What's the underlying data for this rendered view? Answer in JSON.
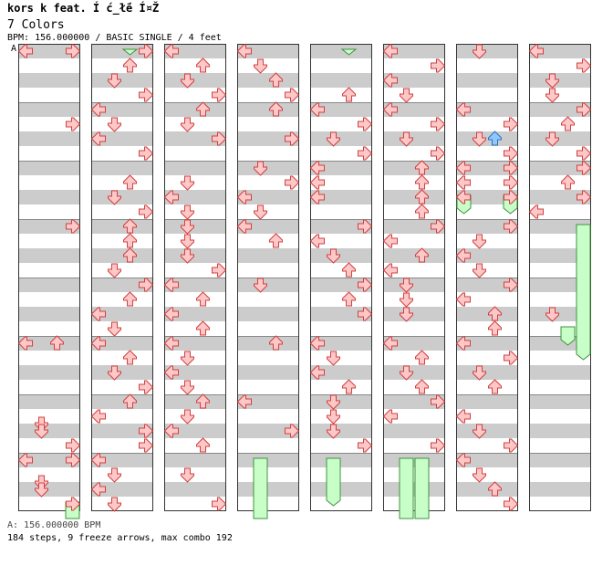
{
  "header": {
    "title": "kors k feat. Í  ć_ł̃é  Í¤Ž",
    "song": "7 Colors",
    "info": "BPM: 156.000000 / BASIC SINGLE / 4 feet"
  },
  "marker": "A",
  "footer": {
    "bpm": "A: 156.000000 BPM",
    "stats": "184 steps, 9 freeze arrows, max combo 192"
  },
  "colors": {
    "arrow_fill": "#ffc8c8",
    "arrow_stroke": "#d04040",
    "blue_fill": "#8ec8ff",
    "blue_stroke": "#3070c0",
    "freeze_fill": "#c8ffc8",
    "freeze_stroke": "#409040",
    "stripe": "#cccccc",
    "border": "#333333"
  },
  "chart_data": {
    "type": "step-chart",
    "lanes": [
      "left",
      "down",
      "up",
      "right"
    ],
    "columns": 8,
    "measures_per_column": 8,
    "notes": [
      [
        [
          0,
          0,
          0
        ],
        [
          0,
          0,
          3
        ],
        [
          1,
          4,
          3
        ],
        [
          3,
          0,
          3
        ],
        [
          5,
          0,
          0
        ],
        [
          5,
          0,
          2
        ],
        [
          6,
          6,
          1
        ],
        [
          7,
          6,
          1
        ],
        [
          6,
          8,
          1
        ],
        [
          6,
          12,
          3
        ],
        [
          7,
          0,
          0
        ],
        [
          7,
          0,
          3
        ],
        [
          7,
          8,
          1
        ],
        [
          7,
          12,
          3
        ]
      ],
      [
        [
          0,
          0,
          3
        ],
        [
          0,
          4,
          2
        ],
        [
          0,
          8,
          1
        ],
        [
          0,
          12,
          3
        ],
        [
          1,
          0,
          0
        ],
        [
          1,
          4,
          1
        ],
        [
          1,
          8,
          0
        ],
        [
          1,
          12,
          3
        ],
        [
          2,
          4,
          2
        ],
        [
          2,
          8,
          1
        ],
        [
          2,
          12,
          3
        ],
        [
          3,
          0,
          2
        ],
        [
          3,
          4,
          2
        ],
        [
          3,
          8,
          2
        ],
        [
          3,
          12,
          1
        ],
        [
          4,
          0,
          3
        ],
        [
          4,
          4,
          2
        ],
        [
          4,
          8,
          0
        ],
        [
          4,
          12,
          1
        ],
        [
          5,
          0,
          0
        ],
        [
          5,
          4,
          2
        ],
        [
          5,
          8,
          1
        ],
        [
          5,
          12,
          3
        ],
        [
          6,
          0,
          2
        ],
        [
          6,
          4,
          0
        ],
        [
          6,
          8,
          3
        ],
        [
          6,
          12,
          3
        ],
        [
          7,
          0,
          0
        ],
        [
          7,
          4,
          1
        ],
        [
          7,
          8,
          0
        ],
        [
          7,
          12,
          1
        ]
      ],
      [
        [
          0,
          0,
          0
        ],
        [
          0,
          4,
          2
        ],
        [
          0,
          8,
          1
        ],
        [
          0,
          12,
          3
        ],
        [
          1,
          0,
          2
        ],
        [
          1,
          4,
          1
        ],
        [
          1,
          8,
          3
        ],
        [
          2,
          4,
          1
        ],
        [
          2,
          8,
          0
        ],
        [
          2,
          12,
          1
        ],
        [
          3,
          0,
          1
        ],
        [
          3,
          4,
          1
        ],
        [
          3,
          8,
          1
        ],
        [
          3,
          12,
          3
        ],
        [
          4,
          0,
          0
        ],
        [
          4,
          4,
          2
        ],
        [
          4,
          8,
          0
        ],
        [
          4,
          12,
          2
        ],
        [
          5,
          0,
          0
        ],
        [
          5,
          4,
          1
        ],
        [
          5,
          8,
          0
        ],
        [
          5,
          12,
          1
        ],
        [
          6,
          0,
          2
        ],
        [
          6,
          4,
          1
        ],
        [
          6,
          8,
          0
        ],
        [
          6,
          12,
          2
        ],
        [
          7,
          4,
          1
        ],
        [
          7,
          12,
          3
        ]
      ],
      [
        [
          0,
          0,
          0
        ],
        [
          0,
          4,
          1
        ],
        [
          0,
          8,
          2
        ],
        [
          0,
          12,
          3
        ],
        [
          1,
          0,
          2
        ],
        [
          1,
          8,
          3
        ],
        [
          2,
          0,
          1
        ],
        [
          2,
          4,
          3
        ],
        [
          2,
          8,
          0
        ],
        [
          2,
          12,
          1
        ],
        [
          3,
          0,
          0
        ],
        [
          3,
          4,
          2
        ],
        [
          4,
          0,
          1
        ],
        [
          5,
          0,
          2
        ],
        [
          6,
          0,
          0
        ],
        [
          6,
          8,
          3
        ]
      ],
      [
        [
          0,
          12,
          2
        ],
        [
          1,
          0,
          0
        ],
        [
          1,
          4,
          3
        ],
        [
          1,
          8,
          1
        ],
        [
          1,
          12,
          3
        ],
        [
          2,
          0,
          0
        ],
        [
          2,
          4,
          0
        ],
        [
          2,
          8,
          0
        ],
        [
          3,
          0,
          3
        ],
        [
          3,
          4,
          0
        ],
        [
          3,
          8,
          1
        ],
        [
          3,
          12,
          2
        ],
        [
          4,
          0,
          3
        ],
        [
          4,
          4,
          2
        ],
        [
          4,
          8,
          3
        ],
        [
          5,
          0,
          0
        ],
        [
          5,
          4,
          1
        ],
        [
          5,
          8,
          0
        ],
        [
          5,
          12,
          2
        ],
        [
          6,
          0,
          1
        ],
        [
          6,
          4,
          1
        ],
        [
          6,
          8,
          1
        ],
        [
          6,
          12,
          3
        ]
      ],
      [
        [
          0,
          0,
          0
        ],
        [
          0,
          4,
          3
        ],
        [
          0,
          8,
          0
        ],
        [
          0,
          12,
          1
        ],
        [
          1,
          0,
          0
        ],
        [
          1,
          4,
          3
        ],
        [
          1,
          8,
          1
        ],
        [
          1,
          12,
          3
        ],
        [
          2,
          0,
          2
        ],
        [
          2,
          4,
          2
        ],
        [
          2,
          8,
          2
        ],
        [
          2,
          12,
          2
        ],
        [
          3,
          0,
          3
        ],
        [
          3,
          4,
          0
        ],
        [
          3,
          8,
          2
        ],
        [
          3,
          12,
          0
        ],
        [
          4,
          0,
          1
        ],
        [
          4,
          4,
          1
        ],
        [
          4,
          8,
          1
        ],
        [
          5,
          0,
          0
        ],
        [
          5,
          4,
          2
        ],
        [
          5,
          8,
          1
        ],
        [
          5,
          12,
          2
        ],
        [
          6,
          0,
          3
        ],
        [
          6,
          4,
          0
        ],
        [
          6,
          12,
          3
        ]
      ],
      [
        [
          0,
          0,
          1
        ],
        [
          1,
          0,
          0
        ],
        [
          1,
          4,
          3
        ],
        [
          1,
          8,
          1
        ],
        [
          1,
          12,
          3
        ],
        [
          2,
          0,
          0
        ],
        [
          2,
          0,
          3
        ],
        [
          2,
          4,
          0
        ],
        [
          2,
          4,
          3
        ],
        [
          2,
          8,
          0
        ],
        [
          2,
          8,
          3
        ],
        [
          3,
          0,
          3
        ],
        [
          3,
          4,
          1
        ],
        [
          3,
          8,
          0
        ],
        [
          3,
          12,
          1
        ],
        [
          4,
          0,
          3
        ],
        [
          4,
          4,
          0
        ],
        [
          4,
          8,
          2
        ],
        [
          4,
          12,
          2
        ],
        [
          5,
          0,
          0
        ],
        [
          5,
          4,
          3
        ],
        [
          5,
          8,
          1
        ],
        [
          5,
          12,
          2
        ],
        [
          6,
          4,
          0
        ],
        [
          6,
          8,
          1
        ],
        [
          6,
          12,
          3
        ],
        [
          7,
          0,
          0
        ],
        [
          7,
          4,
          1
        ],
        [
          7,
          8,
          2
        ],
        [
          7,
          12,
          3
        ]
      ],
      [
        [
          0,
          0,
          0
        ],
        [
          0,
          4,
          3
        ],
        [
          0,
          8,
          1
        ],
        [
          0,
          12,
          1
        ],
        [
          1,
          0,
          3
        ],
        [
          1,
          4,
          2
        ],
        [
          1,
          8,
          1
        ],
        [
          1,
          12,
          3
        ],
        [
          2,
          0,
          3
        ],
        [
          2,
          4,
          2
        ],
        [
          2,
          8,
          3
        ],
        [
          2,
          12,
          0
        ],
        [
          4,
          8,
          1
        ]
      ]
    ],
    "blue_notes": [
      [
        6,
        1,
        8,
        2
      ]
    ],
    "freezes": [
      [
        1,
        2,
        0,
        0.0,
        0,
        0.5
      ],
      [
        0,
        3,
        7,
        12.0,
        8,
        0.0
      ],
      [
        3,
        1,
        7,
        0.0,
        8,
        0.0
      ],
      [
        4,
        2,
        0,
        0.0,
        0,
        0.5
      ],
      [
        4,
        1,
        7,
        0.0,
        7,
        12.0
      ],
      [
        5,
        1,
        7,
        0.0,
        7,
        16.0
      ],
      [
        5,
        2,
        7,
        0.0,
        7,
        16.0
      ],
      [
        6,
        0,
        2,
        8.0,
        2,
        12.0
      ],
      [
        6,
        3,
        2,
        8.0,
        2,
        12.0
      ],
      [
        7,
        3,
        3,
        0.0,
        5,
        4.0
      ],
      [
        7,
        2,
        4,
        12.0,
        5,
        0.0
      ]
    ]
  }
}
